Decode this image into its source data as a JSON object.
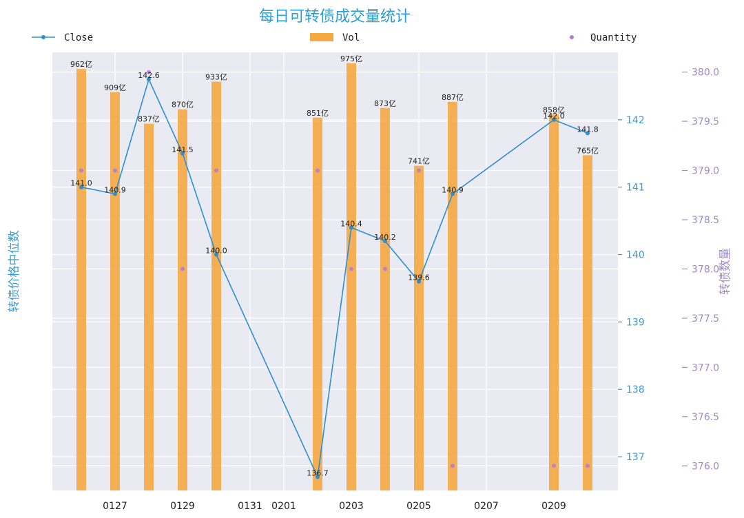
{
  "chart_data": {
    "type": "bar",
    "title": "每日可转债成交量统计",
    "ylabel_left": "转债价格中位数",
    "ylabel_right": "转债数量",
    "legend": [
      "Close",
      "Vol",
      "Quantity"
    ],
    "x_tick_labels": [
      "0127",
      "0129",
      "0131",
      "0201",
      "0203",
      "0205",
      "0207",
      "0209"
    ],
    "left_axis": {
      "ticks": [
        137,
        138,
        139,
        140,
        141,
        142
      ],
      "ylim": [
        136.5,
        143.0
      ]
    },
    "right_axis": {
      "ticks": [
        "376.0",
        "376.5",
        "377.0",
        "377.5",
        "378.0",
        "378.5",
        "379.0",
        "379.5",
        "380.0"
      ],
      "ylim": [
        375.75,
        380.2
      ]
    },
    "vol_axis": {
      "ylim": [
        0,
        1000
      ]
    },
    "series": [
      {
        "name": "Close",
        "values": [
          141.0,
          140.9,
          142.6,
          141.5,
          140.0,
          136.7,
          140.4,
          140.2,
          139.6,
          140.9,
          142.0,
          141.8
        ],
        "labels": [
          "141.0",
          "140.9",
          "142.6",
          "141.5",
          "140.0",
          "136.7",
          "140.4",
          "140.2",
          "139.6",
          "140.9",
          "142.0",
          "141.8"
        ],
        "color": "#2b8fd3"
      },
      {
        "name": "Vol",
        "values": [
          962,
          909,
          837,
          870,
          933,
          851,
          975,
          873,
          741,
          887,
          858,
          765
        ],
        "labels": [
          "962亿",
          "909亿",
          "837亿",
          "870亿",
          "933亿",
          "851亿",
          "975亿",
          "873亿",
          "741亿",
          "887亿",
          "858亿",
          "765亿"
        ],
        "color": "#f5a742"
      },
      {
        "name": "Quantity",
        "values": [
          379,
          379,
          380,
          378,
          379,
          379,
          378,
          378,
          379,
          376,
          376,
          376
        ],
        "color": "#b07ad8"
      }
    ],
    "grid": true,
    "legend_position": "top"
  }
}
